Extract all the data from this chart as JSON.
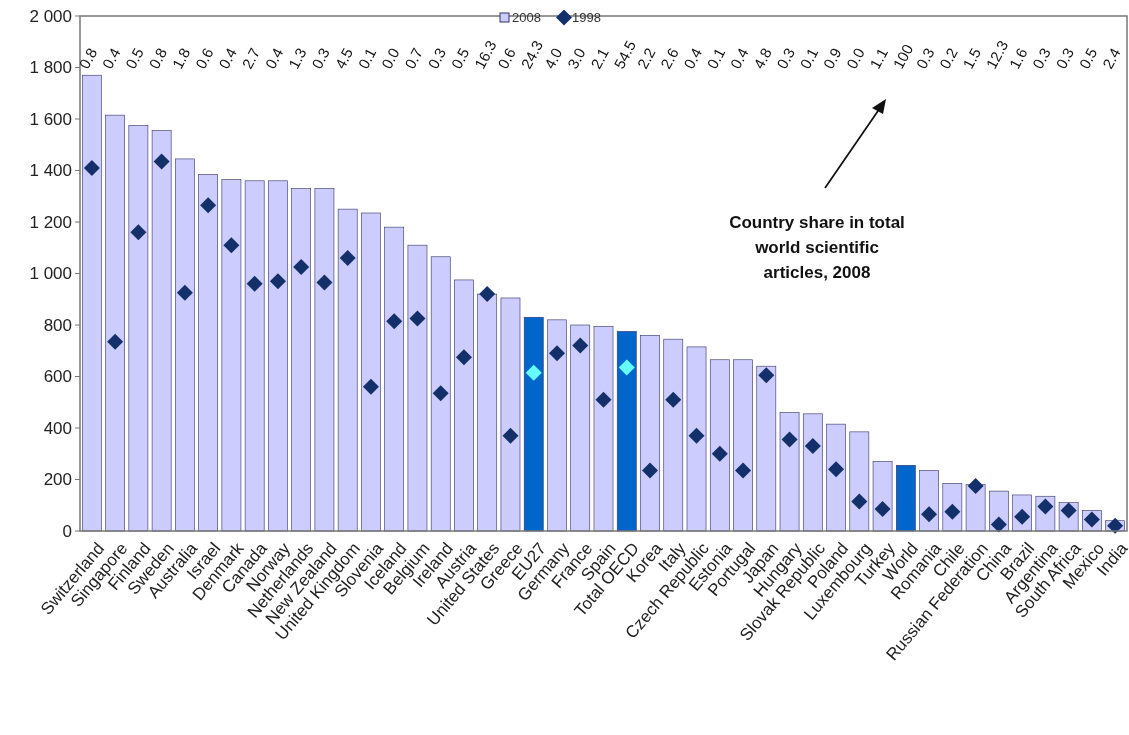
{
  "chart_data": {
    "type": "bar",
    "categories": [
      "Switzerland",
      "Singapore",
      "Finland",
      "Sweden",
      "Australia",
      "Israel",
      "Denmark",
      "Canada",
      "Norway",
      "Netherlands",
      "New Zealand",
      "United Kingdom",
      "Slovenia",
      "Iceland",
      "Belgium",
      "Ireland",
      "Austria",
      "United States",
      "Greece",
      "EU27",
      "Germany",
      "France",
      "Spain",
      "Total OECD",
      "Korea",
      "Italy",
      "Czech Republic",
      "Estonia",
      "Portugal",
      "Japan",
      "Hungary",
      "Slovak Republic",
      "Poland",
      "Luxembourg",
      "Turkey",
      "World",
      "Romania",
      "Chile",
      "Russian Federation",
      "China",
      "Brazil",
      "Argentina",
      "South Africa",
      "Mexico",
      "India"
    ],
    "series": [
      {
        "name": "2008",
        "color": "#ccccff",
        "colors": [
          "#ccccff",
          "#ccccff",
          "#ccccff",
          "#ccccff",
          "#ccccff",
          "#ccccff",
          "#ccccff",
          "#ccccff",
          "#ccccff",
          "#ccccff",
          "#ccccff",
          "#ccccff",
          "#ccccff",
          "#ccccff",
          "#ccccff",
          "#ccccff",
          "#ccccff",
          "#ccccff",
          "#ccccff",
          "#0066cc",
          "#ccccff",
          "#ccccff",
          "#ccccff",
          "#0066cc",
          "#ccccff",
          "#ccccff",
          "#ccccff",
          "#ccccff",
          "#ccccff",
          "#ccccff",
          "#ccccff",
          "#ccccff",
          "#ccccff",
          "#ccccff",
          "#ccccff",
          "#0066cc",
          "#ccccff",
          "#ccccff",
          "#ccccff",
          "#ccccff",
          "#ccccff",
          "#ccccff",
          "#ccccff",
          "#ccccff",
          "#ccccff"
        ],
        "values": [
          1770,
          1615,
          1575,
          1555,
          1445,
          1385,
          1365,
          1360,
          1360,
          1330,
          1330,
          1250,
          1235,
          1180,
          1110,
          1065,
          975,
          920,
          905,
          830,
          820,
          800,
          795,
          775,
          760,
          745,
          715,
          665,
          665,
          640,
          460,
          455,
          415,
          385,
          270,
          255,
          235,
          185,
          180,
          155,
          140,
          135,
          110,
          80,
          40
        ]
      },
      {
        "name": "1998",
        "type": "scatter",
        "marker": "diamond",
        "color": "#13306b",
        "colors": [
          "#13306b",
          "#13306b",
          "#13306b",
          "#13306b",
          "#13306b",
          "#13306b",
          "#13306b",
          "#13306b",
          "#13306b",
          "#13306b",
          "#13306b",
          "#13306b",
          "#13306b",
          "#13306b",
          "#13306b",
          "#13306b",
          "#13306b",
          "#13306b",
          "#13306b",
          "#66ffff",
          "#13306b",
          "#13306b",
          "#13306b",
          "#66ffff",
          "#13306b",
          "#13306b",
          "#13306b",
          "#13306b",
          "#13306b",
          "#13306b",
          "#13306b",
          "#13306b",
          "#13306b",
          "#13306b",
          "#13306b",
          "#13306b",
          "#13306b",
          "#13306b",
          "#13306b",
          "#13306b",
          "#13306b",
          "#13306b",
          "#13306b",
          "#13306b",
          "#13306b"
        ],
        "values": [
          1410,
          735,
          1160,
          1435,
          925,
          1265,
          1110,
          960,
          970,
          1025,
          965,
          1060,
          560,
          815,
          825,
          535,
          675,
          920,
          370,
          615,
          690,
          720,
          510,
          635,
          235,
          510,
          370,
          300,
          235,
          605,
          355,
          330,
          240,
          115,
          85,
          null,
          65,
          75,
          175,
          25,
          55,
          95,
          80,
          45,
          20
        ]
      }
    ],
    "ylim": [
      0,
      2000
    ],
    "yticks": [
      {
        "value": 0,
        "label": "0"
      },
      {
        "value": 200,
        "label": "200"
      },
      {
        "value": 400,
        "label": "400"
      },
      {
        "value": 600,
        "label": "600"
      },
      {
        "value": 800,
        "label": "800"
      },
      {
        "value": 1000,
        "label": "1 000"
      },
      {
        "value": 1200,
        "label": "1 200"
      },
      {
        "value": 1400,
        "label": "1 400"
      },
      {
        "value": 1600,
        "label": "1 600"
      },
      {
        "value": 1800,
        "label": "1 800"
      },
      {
        "value": 2000,
        "label": "2 000"
      }
    ],
    "grid": false,
    "legend": "top",
    "annotations": [
      "0.8",
      "0.4",
      "0.5",
      "0.8",
      "1.8",
      "0.6",
      "0.4",
      "2.7",
      "0.4",
      "1.3",
      "0.3",
      "4.5",
      "0.1",
      "0.0",
      "0.7",
      "0.3",
      "0.5",
      "16.3",
      "0.6",
      "24.3",
      "4.0",
      "3.0",
      "2.1",
      "54.5",
      "2.2",
      "2.6",
      "0.4",
      "0.1",
      "0.4",
      "4.8",
      "0.3",
      "0.1",
      "0.9",
      "0.0",
      "1.1",
      "100",
      "0.3",
      "0.2",
      "1.5",
      "12.3",
      "1.6",
      "0.3",
      "0.3",
      "0.5",
      "2.4",
      "Country share in total world scientific articles, 2008"
    ]
  }
}
